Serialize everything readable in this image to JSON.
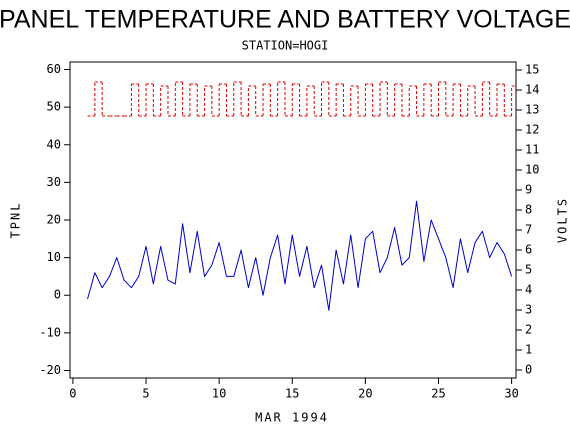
{
  "chart_data": {
    "type": "line",
    "title": "PANEL TEMPERATURE AND BATTERY VOLTAGE",
    "subtitle": "STATION=HOGI",
    "x_label": "MAR 1994",
    "y_label": "TPNL",
    "y2_label": "VOLTS",
    "x": [
      1,
      1.5,
      2,
      2.5,
      3,
      3.5,
      4,
      4.5,
      5,
      5.5,
      6,
      6.5,
      7,
      7.5,
      8,
      8.5,
      9,
      9.5,
      10,
      10.5,
      11,
      11.5,
      12,
      12.5,
      13,
      13.5,
      14,
      14.5,
      15,
      15.5,
      16,
      16.5,
      17,
      17.5,
      18,
      18.5,
      19,
      19.5,
      20,
      20.5,
      21,
      21.5,
      22,
      22.5,
      23,
      23.5,
      24,
      24.5,
      25,
      25.5,
      26,
      26.5,
      27,
      27.5,
      28,
      28.5,
      29,
      29.5,
      30
    ],
    "xlim": [
      -0.2,
      30.3
    ],
    "xticks": [
      0,
      5,
      10,
      15,
      20,
      25,
      30
    ],
    "ylim": [
      -22,
      62
    ],
    "yticks": [
      -20,
      -10,
      0,
      10,
      20,
      30,
      40,
      50,
      60
    ],
    "y2lim": [
      -0.4,
      15.4
    ],
    "y2ticks": [
      0,
      1,
      2,
      3,
      4,
      5,
      6,
      7,
      8,
      9,
      10,
      11,
      12,
      13,
      14,
      15
    ],
    "series": [
      {
        "color": "#0000cc",
        "step": false,
        "dashed": false,
        "values": [
          -1,
          6,
          2,
          5,
          10,
          4,
          2,
          5,
          13,
          3,
          13,
          4,
          3,
          19,
          6,
          17,
          5,
          8,
          14,
          5,
          5,
          12,
          2,
          10,
          0,
          10,
          16,
          3,
          16,
          5,
          13,
          2,
          8,
          -4,
          12,
          3,
          16,
          2,
          15,
          17,
          6,
          10,
          18,
          8,
          10,
          25,
          9,
          20,
          15,
          10,
          2,
          15,
          6,
          14,
          17,
          10,
          14,
          11,
          5
        ]
      },
      {
        "color": "#dd0000",
        "axis": "y2",
        "step": true,
        "dashed": true,
        "values": [
          12.7,
          14.4,
          12.7,
          12.7,
          12.7,
          12.7,
          14.3,
          12.7,
          14.3,
          12.7,
          14.2,
          12.7,
          14.4,
          12.7,
          14.3,
          12.7,
          14.2,
          12.7,
          14.3,
          12.7,
          14.4,
          12.7,
          14.2,
          12.7,
          14.3,
          12.7,
          14.4,
          12.7,
          14.3,
          12.7,
          14.2,
          12.7,
          14.4,
          12.7,
          14.3,
          12.7,
          14.2,
          12.7,
          14.3,
          12.7,
          14.4,
          12.7,
          14.3,
          12.7,
          14.2,
          12.7,
          14.3,
          12.7,
          14.4,
          12.7,
          14.3,
          12.7,
          14.2,
          12.7,
          14.4,
          12.7,
          14.3,
          12.7,
          14.2
        ]
      }
    ]
  }
}
